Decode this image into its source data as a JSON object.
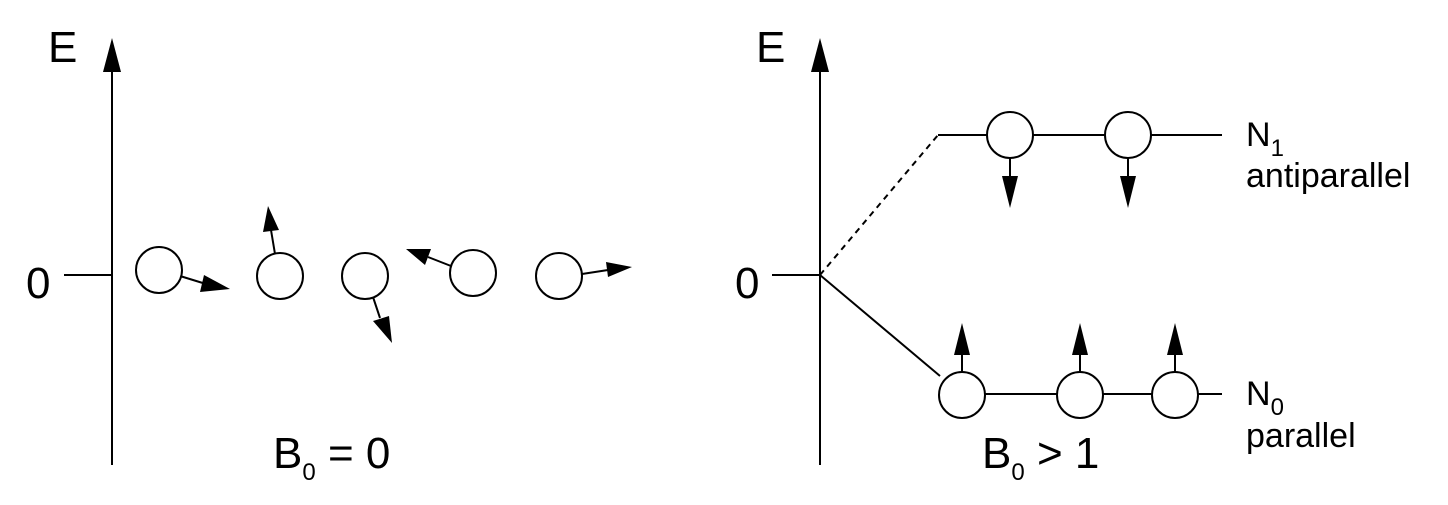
{
  "left_panel": {
    "energy_axis_label": "E",
    "zero_label": "0",
    "field_label": {
      "base": "B",
      "subscript": "0",
      "relation": " = 0"
    }
  },
  "right_panel": {
    "energy_axis_label": "E",
    "zero_label": "0",
    "field_label": {
      "base": "B",
      "subscript": "0",
      "relation": " > 1"
    },
    "upper_level": {
      "symbol": "N",
      "subscript": "1",
      "description": "antiparallel"
    },
    "lower_level": {
      "symbol": "N",
      "subscript": "0",
      "description": "parallel"
    }
  }
}
